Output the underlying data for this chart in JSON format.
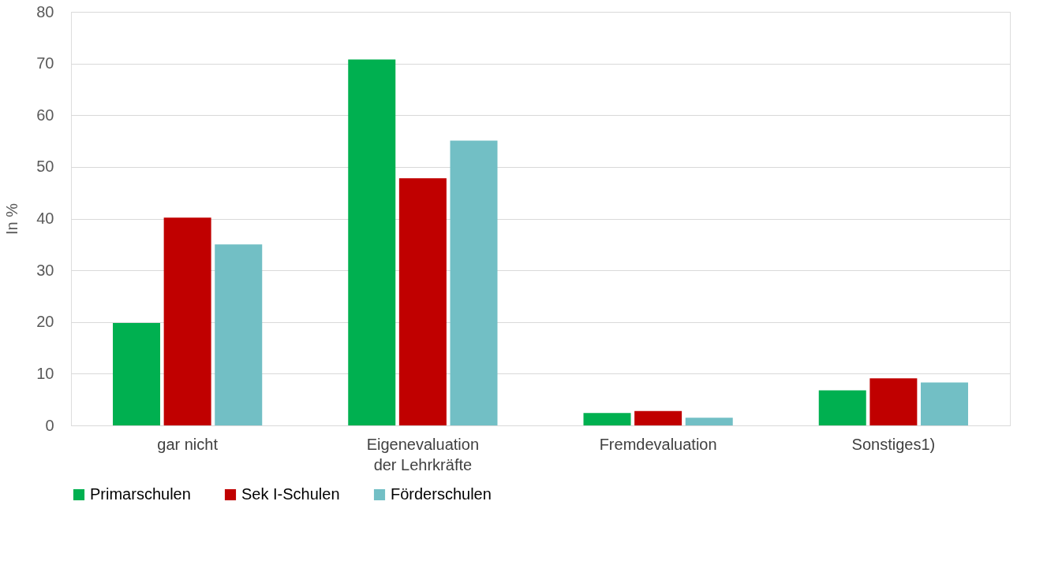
{
  "chart_data": {
    "type": "bar",
    "ylabel": "In %",
    "categories": [
      "gar nicht",
      "Eigenevaluation\nder Lehrkräfte",
      "Fremdevaluation",
      "Sonstiges1)"
    ],
    "series": [
      {
        "name": "Primarschulen",
        "color": "#00b050",
        "values": [
          19.8,
          70.8,
          2.4,
          6.8
        ]
      },
      {
        "name": "Sek I-Schulen",
        "color": "#c00000",
        "values": [
          40.2,
          47.8,
          2.8,
          9.1
        ]
      },
      {
        "name": "Förderschulen",
        "color": "#72bfc5",
        "values": [
          35.0,
          55.1,
          1.5,
          8.3
        ]
      }
    ],
    "ylim": [
      0,
      80
    ],
    "yticks": [
      0,
      10,
      20,
      30,
      40,
      50,
      60,
      70,
      80
    ],
    "grid": "y",
    "legend": "bottom"
  }
}
